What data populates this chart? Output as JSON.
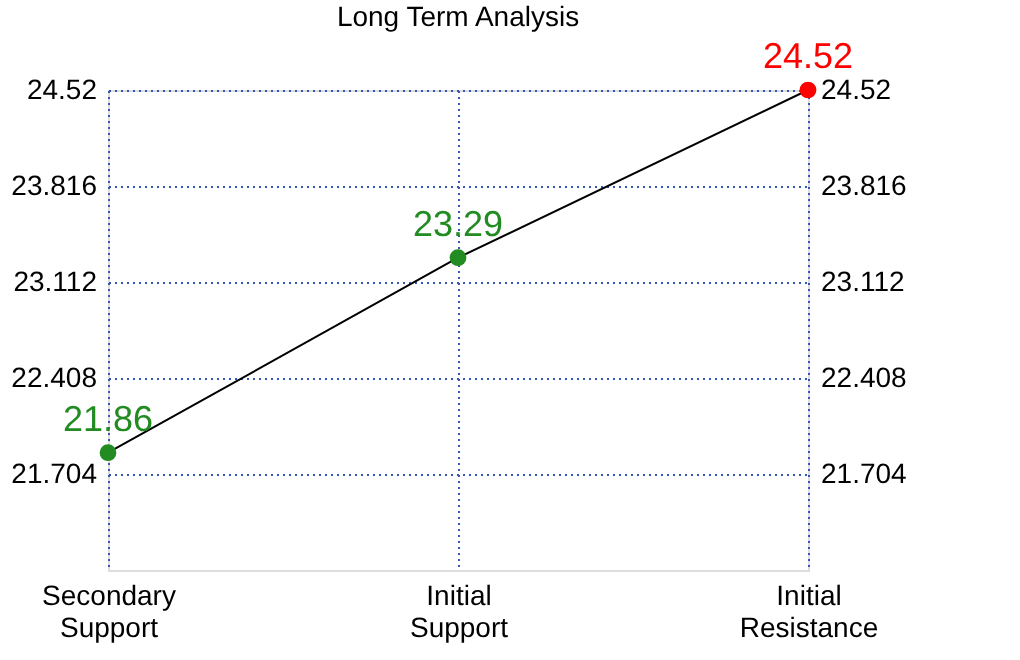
{
  "chart_data": {
    "type": "line",
    "title": "Long Term Analysis",
    "categories": [
      "Secondary\nSupport",
      "Initial\nSupport",
      "Initial\nResistance"
    ],
    "series": [
      {
        "color": "#000000",
        "colors": [
          "#228b22",
          "#228b22",
          "#ff0000"
        ],
        "values": [
          21.86,
          23.29,
          24.52
        ]
      }
    ],
    "marker": "circle",
    "line_style": "solid",
    "data_labels": true,
    "grid": true,
    "ylim": [
      21.0,
      24.52
    ],
    "yticks": [
      21.704,
      22.408,
      23.112,
      23.816,
      24.52
    ],
    "y2lim": [
      21.0,
      24.52
    ],
    "y2ticks": [
      21.704,
      22.408,
      23.112,
      23.816,
      24.52
    ]
  }
}
